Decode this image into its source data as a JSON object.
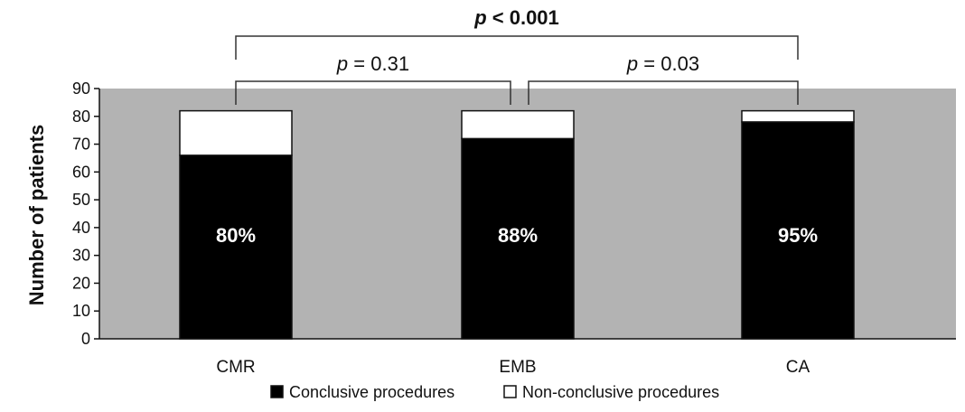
{
  "chart_data": {
    "type": "bar",
    "stacked": true,
    "categories": [
      "CMR",
      "EMB",
      "CA"
    ],
    "series": [
      {
        "name": "Conclusive procedures",
        "values": [
          66,
          72,
          78
        ],
        "color": "#000000"
      },
      {
        "name": "Non-conclusive procedures",
        "values": [
          16,
          10,
          4
        ],
        "color": "#ffffff"
      }
    ],
    "percent_labels": [
      "80%",
      "88%",
      "95%"
    ],
    "ylabel": "Number of patients",
    "xlabel": "",
    "ylim": [
      0,
      90
    ],
    "yticks": [
      "0",
      "10",
      "20",
      "30",
      "40",
      "50",
      "60",
      "70",
      "80",
      "90"
    ],
    "plot_background": "#b3b3b3",
    "legend_position": "bottom",
    "significance": [
      {
        "from": 0,
        "to": 1,
        "p_symbol": "p",
        "text": " = 0.31",
        "level": 1
      },
      {
        "from": 1,
        "to": 2,
        "p_symbol": "p",
        "text": " = 0.03",
        "level": 1
      },
      {
        "from": 0,
        "to": 2,
        "p_symbol": "p",
        "text": " < 0.001",
        "level": 2
      }
    ]
  }
}
